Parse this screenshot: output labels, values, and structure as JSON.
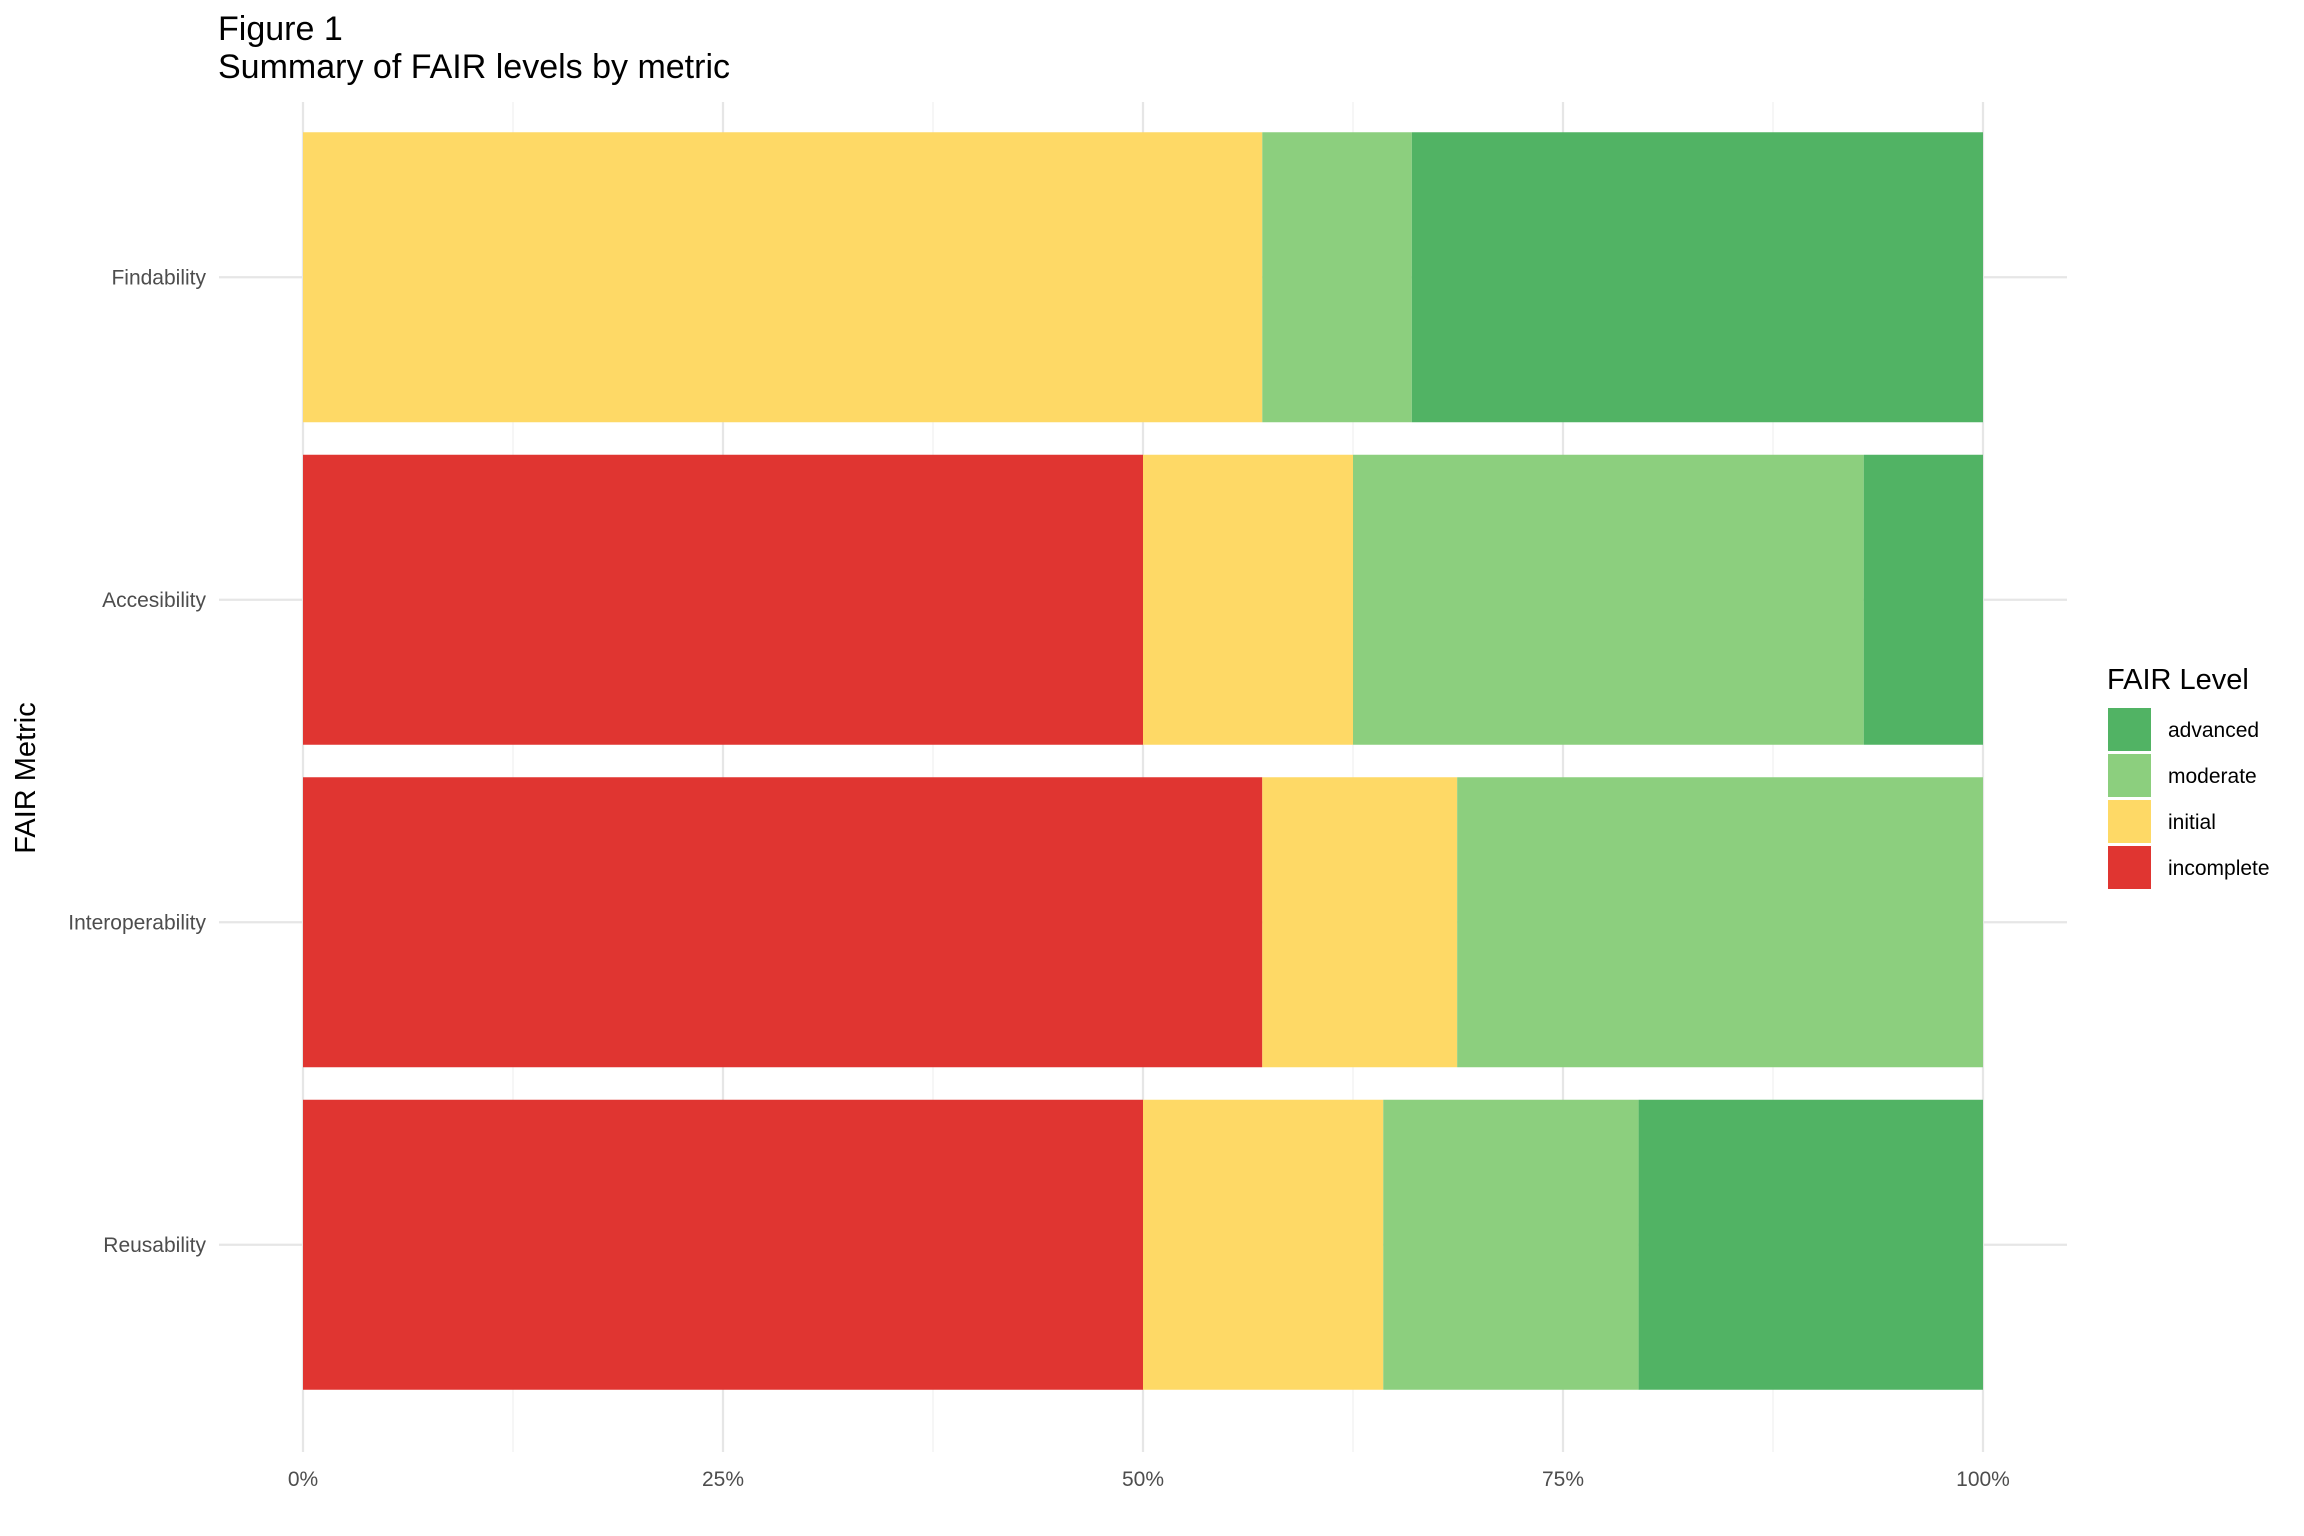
{
  "chart_data": {
    "type": "bar",
    "orientation": "horizontal",
    "stacked": true,
    "title": "Figure 1",
    "subtitle": "Summary of FAIR levels by metric",
    "xlabel": "",
    "ylabel": "FAIR Metric",
    "xlim": [
      0,
      100
    ],
    "x_unit": "%",
    "x_ticks": [
      "0%",
      "25%",
      "50%",
      "75%",
      "100%"
    ],
    "categories": [
      "Findability",
      "Accesibility",
      "Interoperability",
      "Reusability"
    ],
    "series": [
      {
        "name": "incomplete",
        "color": "#E03531",
        "values": [
          0,
          50,
          57.1,
          50
        ]
      },
      {
        "name": "initial",
        "color": "#FED966",
        "values": [
          57.1,
          12.5,
          11.6,
          14.3
        ]
      },
      {
        "name": "moderate",
        "color": "#8CCF7E",
        "values": [
          8.9,
          30.4,
          31.3,
          15.2
        ]
      },
      {
        "name": "advanced",
        "color": "#51B364",
        "values": [
          34.0,
          7.1,
          0,
          20.5
        ]
      }
    ],
    "grid": true,
    "legend": {
      "title": "FAIR Level",
      "placement": "right",
      "order": [
        "advanced",
        "moderate",
        "initial",
        "incomplete"
      ]
    }
  }
}
